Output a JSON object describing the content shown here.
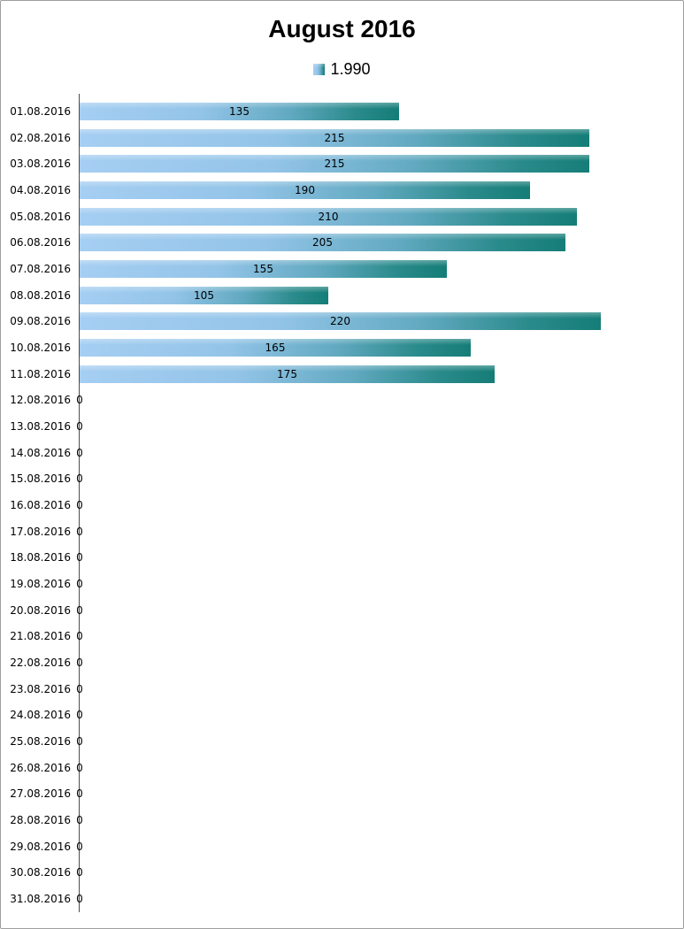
{
  "title": "August 2016",
  "legend": {
    "series_label": "1.990",
    "position": "top"
  },
  "colors": {
    "bar_gradient": [
      "#A5CEF2",
      "#93C4E8",
      "#61A9C0",
      "#2B8B8C",
      "#157D77"
    ],
    "bar_gradient_stops": [
      "0%",
      "38%",
      "66%",
      "86%",
      "100%"
    ],
    "axis_line": "#4d4d4d",
    "chart_border": "#9e9e9e",
    "text": "#000000",
    "background": "#ffffff"
  },
  "chart_data": {
    "type": "bar",
    "orientation": "horizontal",
    "title": "August 2016",
    "series_name": "1.990",
    "legend_entries": [
      "1.990"
    ],
    "legend_position": "top",
    "grid": false,
    "value_labels": "centered-in-bar, zeros shown at axis",
    "categories": [
      "01.08.2016",
      "02.08.2016",
      "03.08.2016",
      "04.08.2016",
      "05.08.2016",
      "06.08.2016",
      "07.08.2016",
      "08.08.2016",
      "09.08.2016",
      "10.08.2016",
      "11.08.2016",
      "12.08.2016",
      "13.08.2016",
      "14.08.2016",
      "15.08.2016",
      "16.08.2016",
      "17.08.2016",
      "18.08.2016",
      "19.08.2016",
      "20.08.2016",
      "21.08.2016",
      "22.08.2016",
      "23.08.2016",
      "24.08.2016",
      "25.08.2016",
      "26.08.2016",
      "27.08.2016",
      "28.08.2016",
      "29.08.2016",
      "30.08.2016",
      "31.08.2016"
    ],
    "values": [
      135,
      215,
      215,
      190,
      210,
      205,
      155,
      105,
      220,
      165,
      175,
      0,
      0,
      0,
      0,
      0,
      0,
      0,
      0,
      0,
      0,
      0,
      0,
      0,
      0,
      0,
      0,
      0,
      0,
      0,
      0
    ],
    "values_total": 1990,
    "xlim_estimate": [
      0,
      250
    ],
    "xlabel": "",
    "ylabel": ""
  }
}
